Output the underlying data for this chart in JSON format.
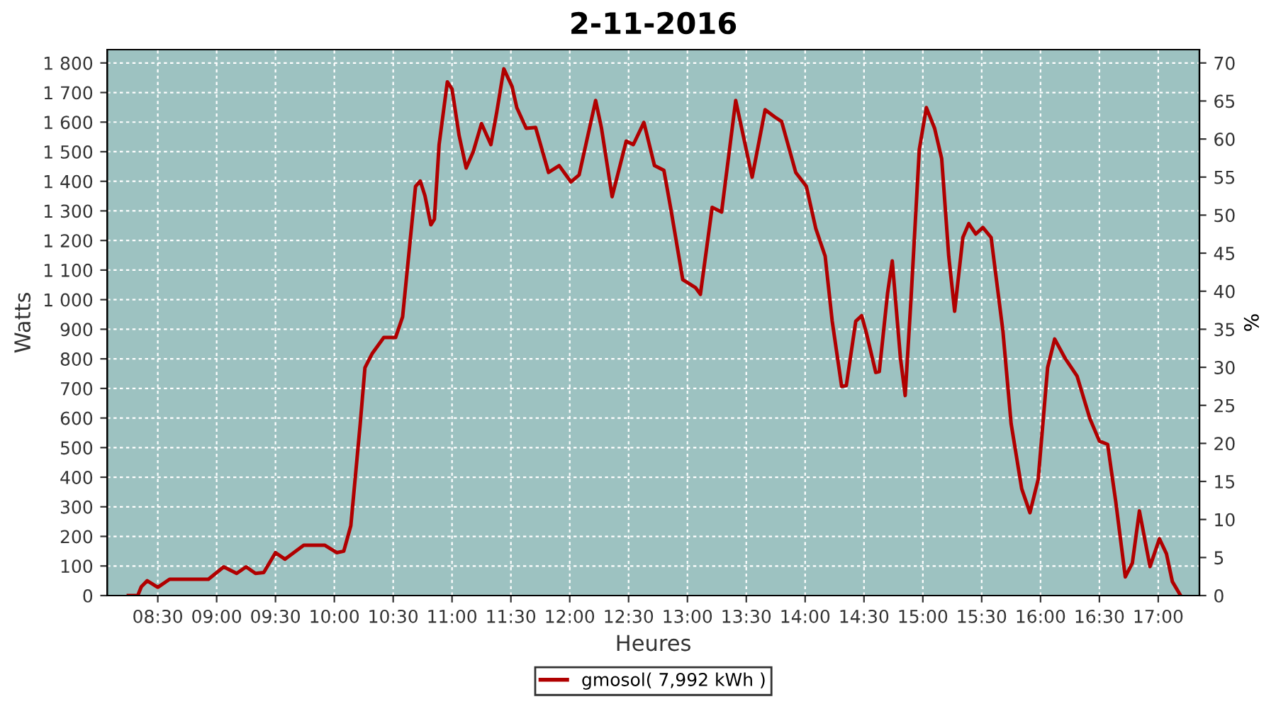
{
  "chart_data": {
    "type": "line",
    "title": "2-11-2016",
    "xlabel": "Heures",
    "ylabel": "Watts",
    "y2label": "%",
    "xlim": [
      8.07,
      17.35
    ],
    "xticks": [
      {
        "value": 8.5,
        "label": "08:30"
      },
      {
        "value": 9,
        "label": "09:00"
      },
      {
        "value": 9.5,
        "label": "09:30"
      },
      {
        "value": 10,
        "label": "10:00"
      },
      {
        "value": 10.5,
        "label": "10:30"
      },
      {
        "value": 11,
        "label": "11:00"
      },
      {
        "value": 11.5,
        "label": "11:30"
      },
      {
        "value": 12,
        "label": "12:00"
      },
      {
        "value": 12.5,
        "label": "12:30"
      },
      {
        "value": 13,
        "label": "13:00"
      },
      {
        "value": 13.5,
        "label": "13:30"
      },
      {
        "value": 14,
        "label": "14:00"
      },
      {
        "value": 14.5,
        "label": "14:30"
      },
      {
        "value": 15,
        "label": "15:00"
      },
      {
        "value": 15.5,
        "label": "15:30"
      },
      {
        "value": 16,
        "label": "16:00"
      },
      {
        "value": 16.5,
        "label": "16:30"
      },
      {
        "value": 17,
        "label": "17:00"
      }
    ],
    "ylim": [
      0,
      1845
    ],
    "yticks": [
      0,
      100,
      200,
      300,
      400,
      500,
      600,
      700,
      800,
      900,
      {
        "value": 1000,
        "label": "1 000"
      },
      {
        "value": 1100,
        "label": "1 100"
      },
      {
        "value": 1200,
        "label": "1 200"
      },
      {
        "value": 1300,
        "label": "1 300"
      },
      {
        "value": 1400,
        "label": "1 400"
      },
      {
        "value": 1500,
        "label": "1 500"
      },
      {
        "value": 1600,
        "label": "1 600"
      },
      {
        "value": 1700,
        "label": "1 700"
      },
      {
        "value": 1800,
        "label": "1 800"
      }
    ],
    "y2lim": [
      0,
      71.75
    ],
    "y2ticks": [
      0,
      5,
      10,
      15,
      20,
      25,
      30,
      35,
      40,
      45,
      50,
      55,
      60,
      65,
      70
    ],
    "grid": true,
    "legend": "bottom",
    "marker": "none",
    "line_style": "solid",
    "series": [
      {
        "name": "gmosol( 7,992 kWh )",
        "color": "#b00000",
        "x": [
          8.25,
          8.33,
          8.36,
          8.41,
          8.5,
          8.6,
          8.93,
          9.06,
          9.17,
          9.25,
          9.33,
          9.4,
          9.5,
          9.58,
          9.74,
          9.92,
          10.02,
          10.08,
          10.14,
          10.22,
          10.26,
          10.32,
          10.42,
          10.52,
          10.58,
          10.69,
          10.73,
          10.77,
          10.82,
          10.85,
          10.89,
          10.96,
          11.0,
          11.06,
          11.12,
          11.18,
          11.25,
          11.33,
          11.38,
          11.44,
          11.51,
          11.55,
          11.63,
          11.71,
          11.82,
          11.91,
          12.01,
          12.08,
          12.22,
          12.27,
          12.36,
          12.48,
          12.54,
          12.63,
          12.72,
          12.8,
          12.86,
          12.96,
          13.07,
          13.11,
          13.21,
          13.29,
          13.41,
          13.55,
          13.66,
          13.74,
          13.8,
          13.92,
          14.01,
          14.09,
          14.17,
          14.23,
          14.31,
          14.35,
          14.43,
          14.48,
          14.52,
          14.6,
          14.63,
          14.7,
          14.74,
          14.81,
          14.85,
          14.9,
          14.97,
          15.03,
          15.1,
          15.16,
          15.22,
          15.27,
          15.34,
          15.39,
          15.45,
          15.51,
          15.58,
          15.68,
          15.75,
          15.84,
          15.91,
          15.98,
          16.06,
          16.12,
          16.21,
          16.31,
          16.42,
          16.5,
          16.57,
          16.64,
          16.72,
          16.78,
          16.84,
          16.93,
          17.01,
          17.07,
          17.12,
          17.19
        ],
        "values": [
          0,
          0,
          30,
          50,
          28,
          55,
          55,
          97,
          75,
          97,
          75,
          78,
          145,
          123,
          170,
          170,
          145,
          150,
          236,
          581,
          770,
          817,
          872,
          872,
          942,
          1383,
          1401,
          1351,
          1253,
          1272,
          1524,
          1736,
          1712,
          1555,
          1445,
          1500,
          1595,
          1524,
          1634,
          1780,
          1720,
          1649,
          1579,
          1582,
          1430,
          1453,
          1398,
          1422,
          1673,
          1579,
          1348,
          1536,
          1524,
          1599,
          1453,
          1437,
          1304,
          1068,
          1040,
          1018,
          1312,
          1296,
          1673,
          1414,
          1642,
          1618,
          1602,
          1430,
          1383,
          1241,
          1147,
          927,
          707,
          710,
          927,
          946,
          888,
          754,
          757,
          1021,
          1131,
          801,
          676,
          1006,
          1508,
          1649,
          1579,
          1477,
          1147,
          961,
          1210,
          1257,
          1222,
          1244,
          1210,
          895,
          581,
          361,
          280,
          393,
          770,
          867,
          801,
          742,
          597,
          522,
          511,
          314,
          63,
          110,
          286,
          98,
          192,
          141,
          47,
          0
        ]
      }
    ]
  }
}
